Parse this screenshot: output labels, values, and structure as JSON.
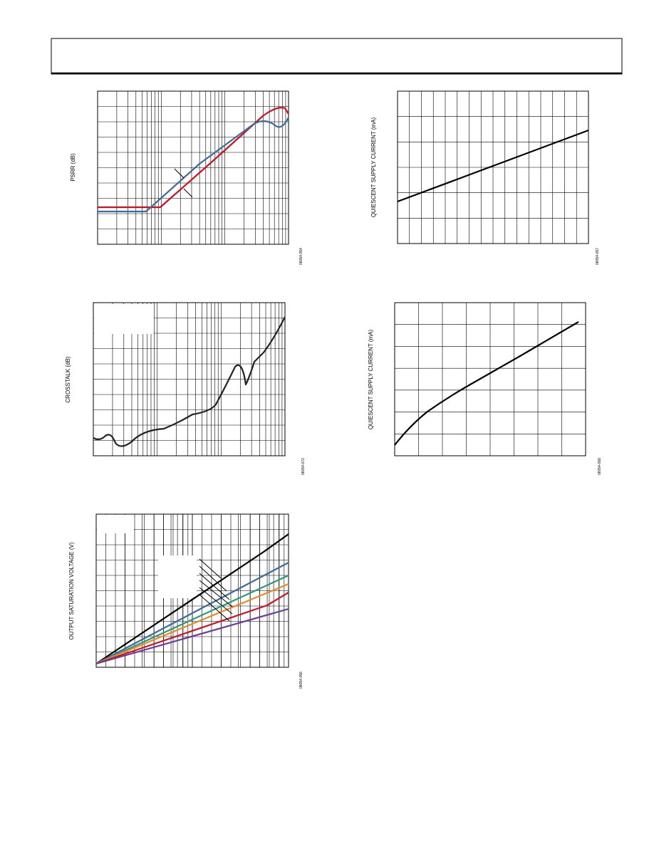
{
  "figures": [
    {
      "y_label": "PSRR (dB)",
      "code": "08054-054"
    },
    {
      "y_label": "CROSSTALK (dB)",
      "code": "08054-072"
    },
    {
      "y_label": "OUTPUT SATURATION VOLTAGE (V)",
      "code": "08054-056"
    },
    {
      "y_label": "QUIESCENT SUPPLY CURRENT (mA)",
      "code": "08054-057"
    },
    {
      "y_label": "QUIESCENT SUPPLY CURRENT (mA)",
      "code": "08054-058"
    }
  ]
}
